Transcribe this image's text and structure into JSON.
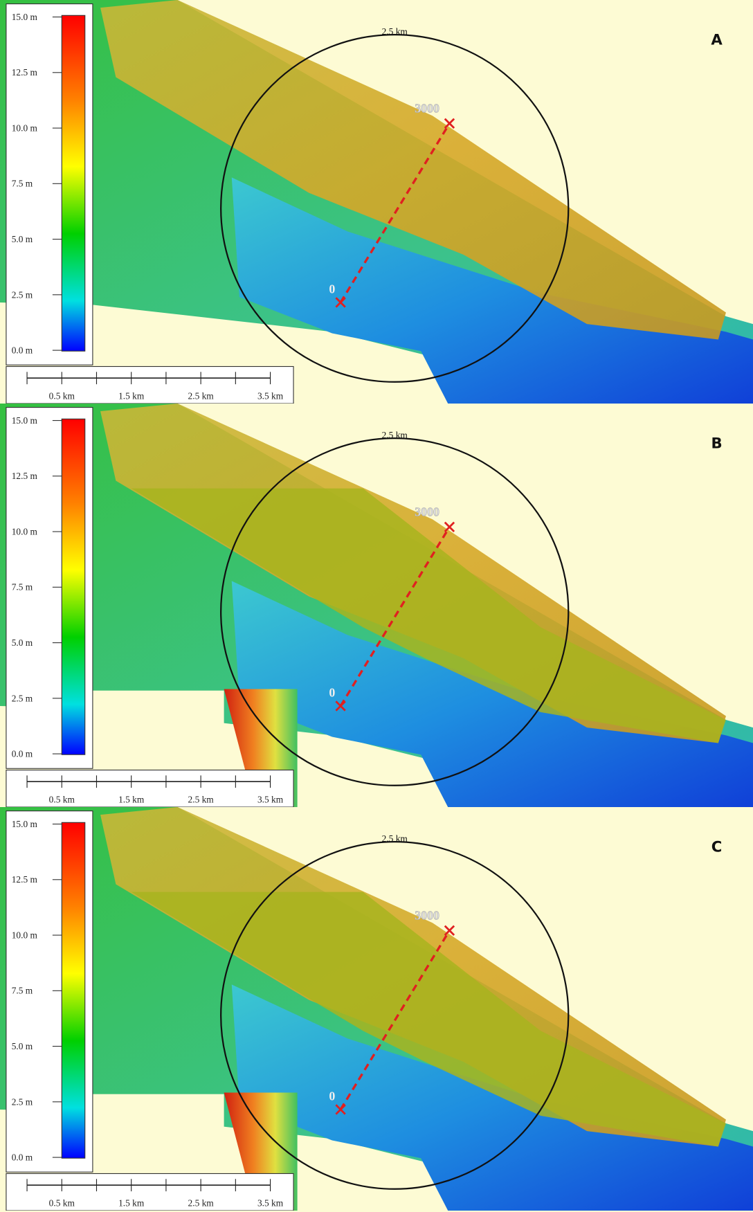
{
  "panels": [
    {
      "label": "A",
      "circle_label": "2.5 km",
      "profile_start": "0",
      "profile_end": "3000",
      "legend_ticks": [
        "15.0 m",
        "12.5 m",
        "10.0 m",
        "7.5 m",
        "5.0 m",
        "2.5 m",
        "0.0 m"
      ],
      "scale_labels": [
        "0.5 km",
        "1.5 km",
        "2.5 km",
        "3.5 km"
      ]
    },
    {
      "label": "B",
      "circle_label": "2.5 km",
      "profile_start": "0",
      "profile_end": "3000",
      "legend_ticks": [
        "15.0 m",
        "12.5 m",
        "10.0 m",
        "7.5 m",
        "5.0 m",
        "2.5 m",
        "0.0 m"
      ],
      "scale_labels": [
        "0.5 km",
        "1.5 km",
        "2.5 km",
        "3.5 km"
      ]
    },
    {
      "label": "C",
      "circle_label": "2.5 km",
      "profile_start": "0",
      "profile_end": "3000",
      "legend_ticks": [
        "15.0 m",
        "12.5 m",
        "10.0 m",
        "7.5 m",
        "5.0 m",
        "2.5 m",
        "0.0 m"
      ],
      "scale_labels": [
        "0.5 km",
        "1.5 km",
        "2.5 km",
        "3.5 km"
      ]
    }
  ]
}
